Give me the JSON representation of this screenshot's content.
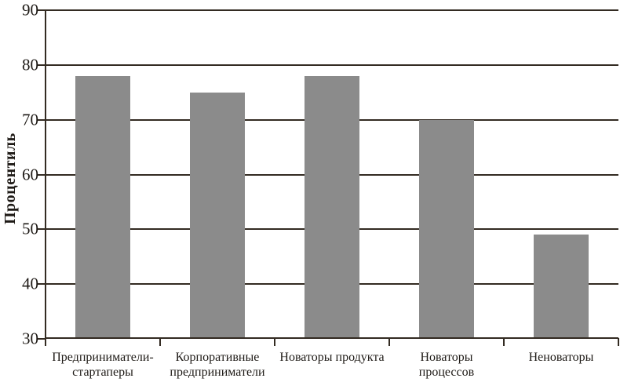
{
  "chart_data": {
    "type": "bar",
    "title": "",
    "xlabel": "",
    "ylabel": "Процентиль",
    "categories": [
      "Предприниматели-стартаперы",
      "Корпоративные предприниматели",
      "Новаторы продукта",
      "Новаторы процессов",
      "Неноваторы"
    ],
    "values": [
      78,
      75,
      78,
      70,
      49
    ],
    "ylim": [
      30,
      90
    ],
    "yticks": [
      30,
      40,
      50,
      60,
      70,
      80,
      90
    ],
    "grid": true,
    "grid_direction": "horizontal",
    "legend_position": "none",
    "bar_color": "#8b8b8b",
    "axis_color": "#332b22",
    "text_color": "#1e1a16",
    "background_color": "#ffffff"
  }
}
